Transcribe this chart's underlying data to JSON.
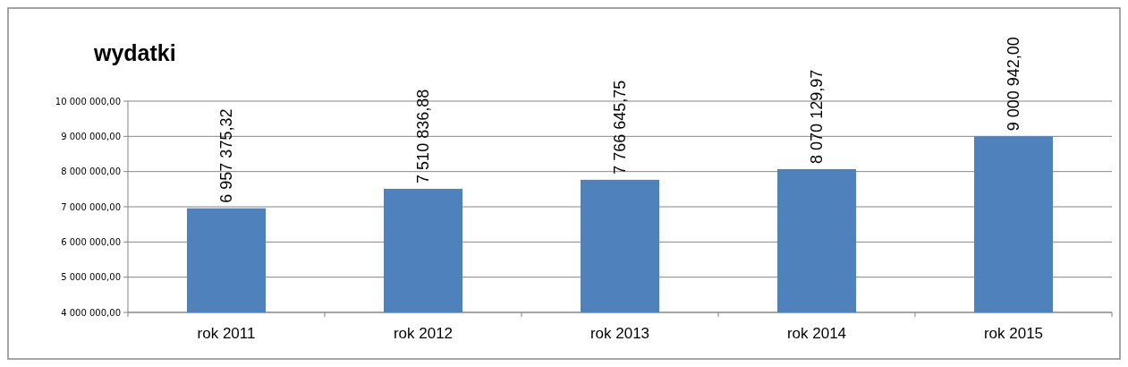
{
  "chart_data": {
    "type": "bar",
    "title": "wydatki",
    "categories": [
      "rok 2011",
      "rok 2012",
      "rok 2013",
      "rok 2014",
      "rok 2015"
    ],
    "values": [
      6957375.32,
      7510836.88,
      7766645.75,
      8070129.97,
      9000942.0
    ],
    "value_labels": [
      "6 957 375,32",
      "7 510 836,88",
      "7 766 645,75",
      "8 070 129,97",
      "9 000 942,00"
    ],
    "color": "#4f81bd",
    "ylim": [
      4000000,
      10000000
    ],
    "yticks": [
      {
        "value": 4000000,
        "label": "4 000 000,00"
      },
      {
        "value": 5000000,
        "label": "5 000 000,00"
      },
      {
        "value": 6000000,
        "label": "6 000 000,00"
      },
      {
        "value": 7000000,
        "label": "7 000 000,00"
      },
      {
        "value": 8000000,
        "label": "8 000 000,00"
      },
      {
        "value": 9000000,
        "label": "9 000 000,00"
      },
      {
        "value": 10000000,
        "label": "10 000 000,00"
      }
    ],
    "grid": "y"
  }
}
